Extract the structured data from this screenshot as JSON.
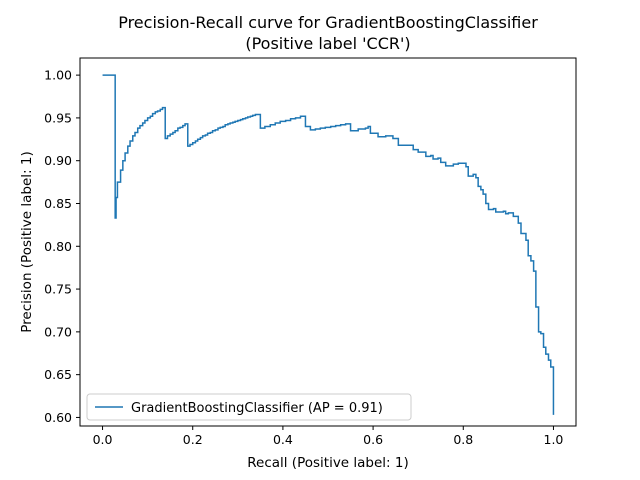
{
  "chart_data": {
    "type": "line",
    "title_line1": "Precision-Recall curve for GradientBoostingClassifier",
    "title_line2": "(Positive label 'CCR')",
    "xlabel": "Recall (Positive label: 1)",
    "ylabel": "Precision (Positive label: 1)",
    "xlim": [
      -0.05,
      1.05
    ],
    "ylim": [
      0.59,
      1.02
    ],
    "xticks": [
      0.0,
      0.2,
      0.4,
      0.6,
      0.8,
      1.0
    ],
    "xtick_labels": [
      "0.0",
      "0.2",
      "0.4",
      "0.6",
      "0.8",
      "1.0"
    ],
    "yticks": [
      0.6,
      0.65,
      0.7,
      0.75,
      0.8,
      0.85,
      0.9,
      0.95,
      1.0
    ],
    "ytick_labels": [
      "0.60",
      "0.65",
      "0.70",
      "0.75",
      "0.80",
      "0.85",
      "0.90",
      "0.95",
      "1.00"
    ],
    "legend_position": "lower-left",
    "drawstyle": "steps-post",
    "series": [
      {
        "name": "GradientBoostingClassifier (AP = 0.91)",
        "color": "#1f77b4",
        "points": [
          [
            0.0,
            1.0
          ],
          [
            0.028,
            1.0
          ],
          [
            0.028,
            0.833
          ],
          [
            0.03,
            0.857
          ],
          [
            0.033,
            0.875
          ],
          [
            0.04,
            0.889
          ],
          [
            0.045,
            0.9
          ],
          [
            0.05,
            0.909
          ],
          [
            0.056,
            0.917
          ],
          [
            0.061,
            0.923
          ],
          [
            0.067,
            0.929
          ],
          [
            0.072,
            0.933
          ],
          [
            0.078,
            0.938
          ],
          [
            0.083,
            0.941
          ],
          [
            0.089,
            0.944
          ],
          [
            0.094,
            0.947
          ],
          [
            0.1,
            0.95
          ],
          [
            0.106,
            0.952
          ],
          [
            0.111,
            0.955
          ],
          [
            0.117,
            0.957
          ],
          [
            0.122,
            0.958
          ],
          [
            0.128,
            0.96
          ],
          [
            0.133,
            0.962
          ],
          [
            0.139,
            0.926
          ],
          [
            0.144,
            0.929
          ],
          [
            0.15,
            0.931
          ],
          [
            0.156,
            0.933
          ],
          [
            0.161,
            0.935
          ],
          [
            0.167,
            0.938
          ],
          [
            0.172,
            0.939
          ],
          [
            0.178,
            0.941
          ],
          [
            0.183,
            0.943
          ],
          [
            0.189,
            0.917
          ],
          [
            0.194,
            0.919
          ],
          [
            0.2,
            0.921
          ],
          [
            0.206,
            0.923
          ],
          [
            0.211,
            0.925
          ],
          [
            0.217,
            0.927
          ],
          [
            0.222,
            0.929
          ],
          [
            0.228,
            0.93
          ],
          [
            0.233,
            0.932
          ],
          [
            0.239,
            0.933
          ],
          [
            0.244,
            0.935
          ],
          [
            0.25,
            0.936
          ],
          [
            0.256,
            0.938
          ],
          [
            0.261,
            0.939
          ],
          [
            0.267,
            0.94
          ],
          [
            0.272,
            0.942
          ],
          [
            0.278,
            0.943
          ],
          [
            0.283,
            0.944
          ],
          [
            0.289,
            0.945
          ],
          [
            0.294,
            0.946
          ],
          [
            0.3,
            0.947
          ],
          [
            0.306,
            0.948
          ],
          [
            0.311,
            0.949
          ],
          [
            0.317,
            0.95
          ],
          [
            0.322,
            0.951
          ],
          [
            0.328,
            0.952
          ],
          [
            0.333,
            0.953
          ],
          [
            0.339,
            0.954
          ],
          [
            0.35,
            0.938
          ],
          [
            0.36,
            0.94
          ],
          [
            0.372,
            0.942
          ],
          [
            0.383,
            0.944
          ],
          [
            0.394,
            0.946
          ],
          [
            0.406,
            0.947
          ],
          [
            0.417,
            0.949
          ],
          [
            0.428,
            0.95
          ],
          [
            0.439,
            0.952
          ],
          [
            0.45,
            0.94
          ],
          [
            0.461,
            0.936
          ],
          [
            0.472,
            0.937
          ],
          [
            0.483,
            0.938
          ],
          [
            0.494,
            0.939
          ],
          [
            0.506,
            0.94
          ],
          [
            0.517,
            0.941
          ],
          [
            0.528,
            0.942
          ],
          [
            0.539,
            0.943
          ],
          [
            0.55,
            0.935
          ],
          [
            0.567,
            0.937
          ],
          [
            0.583,
            0.938
          ],
          [
            0.589,
            0.94
          ],
          [
            0.594,
            0.932
          ],
          [
            0.611,
            0.928
          ],
          [
            0.628,
            0.929
          ],
          [
            0.644,
            0.926
          ],
          [
            0.656,
            0.918
          ],
          [
            0.672,
            0.918
          ],
          [
            0.689,
            0.913
          ],
          [
            0.7,
            0.91
          ],
          [
            0.717,
            0.905
          ],
          [
            0.728,
            0.906
          ],
          [
            0.733,
            0.902
          ],
          [
            0.744,
            0.903
          ],
          [
            0.75,
            0.898
          ],
          [
            0.761,
            0.894
          ],
          [
            0.772,
            0.894
          ],
          [
            0.778,
            0.896
          ],
          [
            0.789,
            0.897
          ],
          [
            0.8,
            0.897
          ],
          [
            0.806,
            0.893
          ],
          [
            0.811,
            0.882
          ],
          [
            0.822,
            0.884
          ],
          [
            0.828,
            0.88
          ],
          [
            0.833,
            0.87
          ],
          [
            0.839,
            0.866
          ],
          [
            0.844,
            0.861
          ],
          [
            0.85,
            0.85
          ],
          [
            0.856,
            0.843
          ],
          [
            0.867,
            0.844
          ],
          [
            0.872,
            0.84
          ],
          [
            0.889,
            0.841
          ],
          [
            0.894,
            0.838
          ],
          [
            0.9,
            0.839
          ],
          [
            0.911,
            0.835
          ],
          [
            0.922,
            0.827
          ],
          [
            0.928,
            0.815
          ],
          [
            0.939,
            0.807
          ],
          [
            0.944,
            0.789
          ],
          [
            0.95,
            0.783
          ],
          [
            0.956,
            0.771
          ],
          [
            0.961,
            0.729
          ],
          [
            0.967,
            0.7
          ],
          [
            0.972,
            0.698
          ],
          [
            0.978,
            0.682
          ],
          [
            0.983,
            0.674
          ],
          [
            0.989,
            0.667
          ],
          [
            0.994,
            0.659
          ],
          [
            1.0,
            0.659
          ],
          [
            1.0,
            0.603
          ]
        ]
      }
    ]
  }
}
